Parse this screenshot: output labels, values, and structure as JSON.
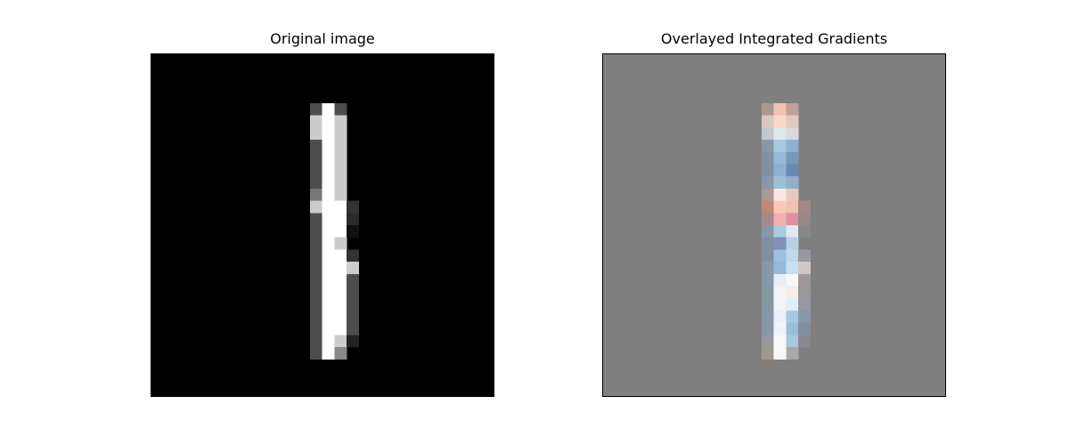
{
  "figure": {
    "left_title": "Original image",
    "right_title": "Overlayed Integrated Gradients"
  },
  "images": {
    "grid_size": 28,
    "background_left": "#000000",
    "background_right": "#7f7f7f",
    "original_pixels": [
      [
        4,
        13,
        "#4d4d4d"
      ],
      [
        5,
        13,
        "#ffffff"
      ],
      [
        6,
        13,
        "#4d4d4d"
      ],
      [
        4,
        14,
        "#cccccc"
      ],
      [
        5,
        14,
        "#ffffff"
      ],
      [
        6,
        14,
        "#cccccc"
      ],
      [
        4,
        15,
        "#cccccc"
      ],
      [
        5,
        15,
        "#ffffff"
      ],
      [
        6,
        15,
        "#cccccc"
      ],
      [
        4,
        16,
        "#4d4d4d"
      ],
      [
        5,
        16,
        "#ffffff"
      ],
      [
        6,
        16,
        "#cccccc"
      ],
      [
        4,
        17,
        "#4d4d4d"
      ],
      [
        5,
        17,
        "#ffffff"
      ],
      [
        6,
        17,
        "#cccccc"
      ],
      [
        4,
        18,
        "#4d4d4d"
      ],
      [
        5,
        18,
        "#ffffff"
      ],
      [
        6,
        18,
        "#cccccc"
      ],
      [
        4,
        19,
        "#4d4d4d"
      ],
      [
        5,
        19,
        "#ffffff"
      ],
      [
        6,
        19,
        "#cccccc"
      ],
      [
        4,
        20,
        "#777777"
      ],
      [
        5,
        20,
        "#ffffff"
      ],
      [
        6,
        20,
        "#cccccc"
      ],
      [
        4,
        21,
        "#cccccc"
      ],
      [
        5,
        21,
        "#ffffff"
      ],
      [
        6,
        21,
        "#ffffff"
      ],
      [
        7,
        21,
        "#333333"
      ],
      [
        4,
        22,
        "#4d4d4d"
      ],
      [
        5,
        22,
        "#ffffff"
      ],
      [
        6,
        22,
        "#ffffff"
      ],
      [
        7,
        22,
        "#2a2a2a"
      ],
      [
        4,
        23,
        "#4d4d4d"
      ],
      [
        5,
        23,
        "#ffffff"
      ],
      [
        6,
        23,
        "#ffffff"
      ],
      [
        7,
        23,
        "#111111"
      ],
      [
        4,
        24,
        "#4d4d4d"
      ],
      [
        5,
        24,
        "#ffffff"
      ],
      [
        6,
        24,
        "#cccccc"
      ],
      [
        4,
        25,
        "#4d4d4d"
      ],
      [
        5,
        25,
        "#ffffff"
      ],
      [
        6,
        25,
        "#ffffff"
      ],
      [
        7,
        25,
        "#333333"
      ],
      [
        4,
        26,
        "#4d4d4d"
      ],
      [
        5,
        26,
        "#ffffff"
      ],
      [
        6,
        26,
        "#ffffff"
      ],
      [
        7,
        26,
        "#cccccc"
      ],
      [
        4,
        27,
        "#4d4d4d"
      ],
      [
        5,
        27,
        "#ffffff"
      ],
      [
        6,
        27,
        "#ffffff"
      ],
      [
        7,
        27,
        "#4d4d4d"
      ],
      [
        4,
        28,
        "#4d4d4d"
      ],
      [
        5,
        28,
        "#ffffff"
      ],
      [
        6,
        28,
        "#ffffff"
      ],
      [
        7,
        28,
        "#4d4d4d"
      ],
      [
        4,
        29,
        "#4d4d4d"
      ],
      [
        5,
        29,
        "#ffffff"
      ],
      [
        6,
        29,
        "#ffffff"
      ],
      [
        7,
        29,
        "#4d4d4d"
      ],
      [
        4,
        30,
        "#4d4d4d"
      ],
      [
        5,
        30,
        "#ffffff"
      ],
      [
        6,
        30,
        "#ffffff"
      ],
      [
        7,
        30,
        "#4d4d4d"
      ],
      [
        4,
        31,
        "#4d4d4d"
      ],
      [
        5,
        31,
        "#ffffff"
      ],
      [
        6,
        31,
        "#ffffff"
      ],
      [
        7,
        31,
        "#4d4d4d"
      ],
      [
        4,
        32,
        "#4d4d4d"
      ],
      [
        5,
        32,
        "#ffffff"
      ],
      [
        6,
        32,
        "#cccccc"
      ],
      [
        7,
        32,
        "#222222"
      ],
      [
        4,
        33,
        "#4d4d4d"
      ],
      [
        5,
        33,
        "#ffffff"
      ],
      [
        6,
        33,
        "#888888"
      ]
    ],
    "overlay_pixels": [
      [
        4,
        13,
        "#a89890"
      ],
      [
        5,
        13,
        "#f2c2b0"
      ],
      [
        6,
        13,
        "#c0a098"
      ],
      [
        4,
        14,
        "#d8c8c0"
      ],
      [
        5,
        14,
        "#f8d8cc"
      ],
      [
        6,
        14,
        "#e0c8bc"
      ],
      [
        4,
        15,
        "#c0c8d0"
      ],
      [
        5,
        15,
        "#dce8f0"
      ],
      [
        6,
        15,
        "#d8d8e0"
      ],
      [
        4,
        16,
        "#8898a8"
      ],
      [
        5,
        16,
        "#a8c8e0"
      ],
      [
        6,
        16,
        "#90b0d0"
      ],
      [
        4,
        17,
        "#8090a0"
      ],
      [
        5,
        17,
        "#98b8d8"
      ],
      [
        6,
        17,
        "#7898b8"
      ],
      [
        4,
        18,
        "#8090a0"
      ],
      [
        5,
        18,
        "#90b0d0"
      ],
      [
        6,
        18,
        "#6888b0"
      ],
      [
        4,
        19,
        "#8898a8"
      ],
      [
        5,
        19,
        "#a0c0d8"
      ],
      [
        6,
        19,
        "#90b0c8"
      ],
      [
        4,
        20,
        "#a89898"
      ],
      [
        5,
        20,
        "#f8e8e0"
      ],
      [
        6,
        20,
        "#e8c8c0"
      ],
      [
        4,
        21,
        "#c08878"
      ],
      [
        5,
        21,
        "#f8c8b8"
      ],
      [
        6,
        21,
        "#f0c0b0"
      ],
      [
        7,
        21,
        "#a08888"
      ],
      [
        4,
        22,
        "#a88888"
      ],
      [
        5,
        22,
        "#f0b0b0"
      ],
      [
        6,
        22,
        "#e090a0"
      ],
      [
        7,
        22,
        "#988888"
      ],
      [
        4,
        23,
        "#8898a8"
      ],
      [
        5,
        23,
        "#a8cce0"
      ],
      [
        6,
        23,
        "#e0e8f0"
      ],
      [
        7,
        23,
        "#888888"
      ],
      [
        4,
        24,
        "#8090a0"
      ],
      [
        5,
        24,
        "#8090b8"
      ],
      [
        6,
        24,
        "#b8d0e0"
      ],
      [
        4,
        25,
        "#8090a0"
      ],
      [
        5,
        25,
        "#a0c0e0"
      ],
      [
        6,
        25,
        "#c0d8e8"
      ],
      [
        7,
        25,
        "#9898a0"
      ],
      [
        4,
        26,
        "#8898a8"
      ],
      [
        5,
        26,
        "#98b8d8"
      ],
      [
        6,
        26,
        "#c8e0f0"
      ],
      [
        7,
        26,
        "#d0c8c8"
      ],
      [
        4,
        27,
        "#8898a8"
      ],
      [
        5,
        27,
        "#e8eef8"
      ],
      [
        6,
        27,
        "#f8f8f8"
      ],
      [
        7,
        27,
        "#a09898"
      ],
      [
        4,
        28,
        "#8898a0"
      ],
      [
        5,
        28,
        "#f4f4f8"
      ],
      [
        6,
        28,
        "#f8ece8"
      ],
      [
        7,
        28,
        "#989898"
      ],
      [
        4,
        29,
        "#8898a0"
      ],
      [
        5,
        29,
        "#f0f4f8"
      ],
      [
        6,
        29,
        "#e0eef8"
      ],
      [
        7,
        29,
        "#9898a0"
      ],
      [
        4,
        30,
        "#8898a8"
      ],
      [
        5,
        30,
        "#e8f0f8"
      ],
      [
        6,
        30,
        "#a8c8e0"
      ],
      [
        7,
        30,
        "#8898a8"
      ],
      [
        4,
        31,
        "#8898a0"
      ],
      [
        5,
        31,
        "#f0f4f8"
      ],
      [
        6,
        31,
        "#98c0d8"
      ],
      [
        7,
        31,
        "#8090a0"
      ],
      [
        4,
        32,
        "#9898a0"
      ],
      [
        5,
        32,
        "#f8f8f8"
      ],
      [
        6,
        32,
        "#a8c8d8"
      ],
      [
        7,
        32,
        "#888890"
      ],
      [
        4,
        33,
        "#a09890"
      ],
      [
        5,
        33,
        "#f8f8f8"
      ],
      [
        6,
        33,
        "#a8a8a8"
      ]
    ]
  }
}
